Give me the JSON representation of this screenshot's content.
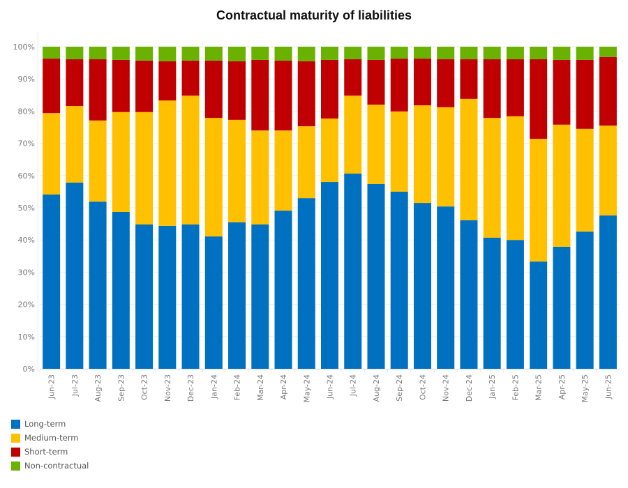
{
  "chart_data": {
    "type": "bar",
    "stacked": true,
    "normalized": true,
    "title": "Contractual maturity of liabilities",
    "xlabel": "",
    "ylabel": "",
    "ylim": [
      0,
      100
    ],
    "y_ticks": [
      "0%",
      "10%",
      "20%",
      "30%",
      "40%",
      "50%",
      "60%",
      "70%",
      "80%",
      "90%",
      "100%"
    ],
    "grid": true,
    "legend_position": "bottom-left",
    "categories": [
      "Jun-23",
      "Jul-23",
      "Aug-23",
      "Sep-23",
      "Oct-23",
      "Nov-23",
      "Dec-23",
      "Jan-24",
      "Feb-24",
      "Mar-24",
      "Apr-24",
      "May-24",
      "Jun-24",
      "Jul-24",
      "Aug-24",
      "Sep-24",
      "Oct-24",
      "Nov-24",
      "Dec-24",
      "Jan-25",
      "Feb-25",
      "Mar-25",
      "Apr-25",
      "May-25",
      "Jun-25"
    ],
    "series": [
      {
        "name": "Long-term",
        "color": "#0070c0",
        "values": [
          54.1,
          57.8,
          51.9,
          48.7,
          44.8,
          44.4,
          44.8,
          41.1,
          45.5,
          44.8,
          49.1,
          53.0,
          58.0,
          60.6,
          57.4,
          55.0,
          51.5,
          50.4,
          46.1,
          40.7,
          40.0,
          33.3,
          37.9,
          42.6,
          47.6
        ]
      },
      {
        "name": "Medium-term",
        "color": "#ffc000",
        "values": [
          25.3,
          23.8,
          25.2,
          31.0,
          34.9,
          38.9,
          40.0,
          36.8,
          31.8,
          29.2,
          24.9,
          22.3,
          19.7,
          24.2,
          24.6,
          24.9,
          30.3,
          30.8,
          37.7,
          37.2,
          38.4,
          38.1,
          37.9,
          31.9,
          27.9
        ]
      },
      {
        "name": "Short-term",
        "color": "#c00000",
        "values": [
          16.9,
          14.5,
          19.0,
          16.2,
          16.0,
          12.2,
          10.9,
          17.8,
          18.2,
          21.9,
          21.7,
          20.2,
          18.2,
          11.3,
          13.9,
          16.4,
          14.5,
          14.9,
          12.3,
          18.2,
          17.7,
          24.7,
          20.1,
          21.4,
          21.3
        ]
      },
      {
        "name": "Non-contractual",
        "color": "#6ab100",
        "values": [
          3.7,
          3.9,
          3.9,
          4.1,
          4.3,
          4.5,
          4.3,
          4.3,
          4.5,
          4.1,
          4.3,
          4.5,
          4.1,
          3.9,
          4.1,
          3.7,
          3.7,
          3.9,
          3.9,
          3.9,
          3.9,
          3.9,
          4.1,
          4.1,
          3.2
        ]
      }
    ]
  },
  "legend": {
    "items": [
      {
        "label": "Long-term",
        "color": "#0070c0"
      },
      {
        "label": "Medium-term",
        "color": "#ffc000"
      },
      {
        "label": "Short-term",
        "color": "#c00000"
      },
      {
        "label": "Non-contractual",
        "color": "#6ab100"
      }
    ]
  }
}
